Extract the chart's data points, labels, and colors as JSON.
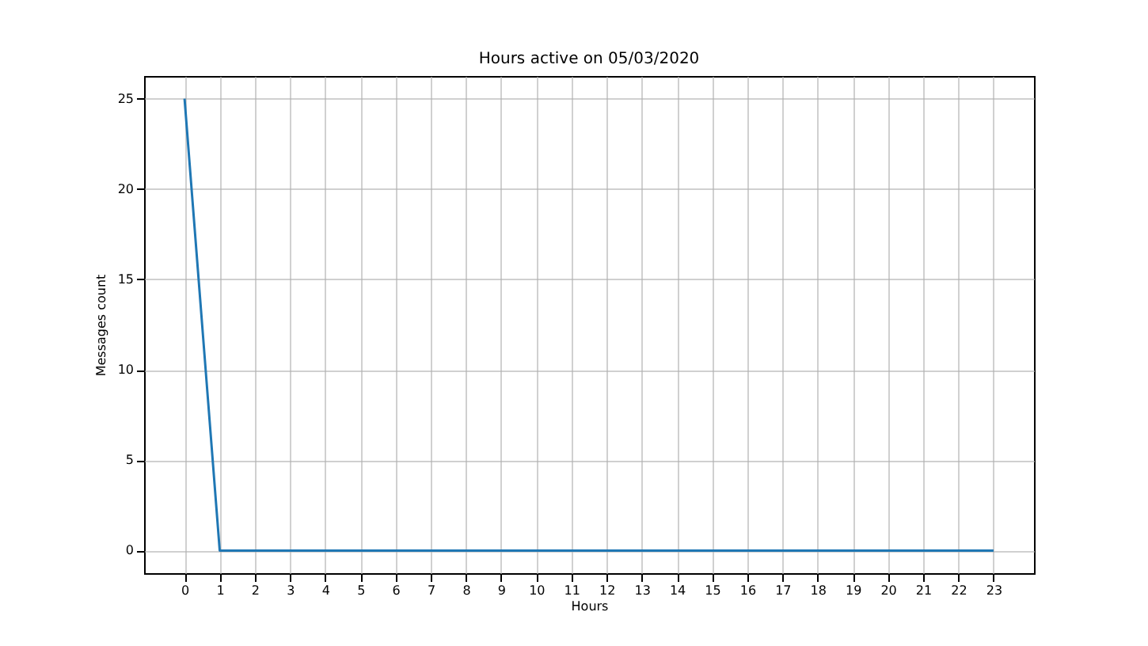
{
  "chart_data": {
    "type": "line",
    "title": "Hours active on 05/03/2020",
    "xlabel": "Hours",
    "ylabel": "Messages count",
    "x": [
      0,
      1,
      2,
      3,
      4,
      5,
      6,
      7,
      8,
      9,
      10,
      11,
      12,
      13,
      14,
      15,
      16,
      17,
      18,
      19,
      20,
      21,
      22,
      23
    ],
    "series": [
      {
        "color": "#1f77b4",
        "values": [
          25,
          0,
          0,
          0,
          0,
          0,
          0,
          0,
          0,
          0,
          0,
          0,
          0,
          0,
          0,
          0,
          0,
          0,
          0,
          0,
          0,
          0,
          0,
          0
        ]
      }
    ],
    "xlim": [
      -1.15,
      24.15
    ],
    "xticks": [
      0,
      1,
      2,
      3,
      4,
      5,
      6,
      7,
      8,
      9,
      10,
      11,
      12,
      13,
      14,
      15,
      16,
      17,
      18,
      19,
      20,
      21,
      22,
      23
    ],
    "ylim": [
      -1.25,
      26.25
    ],
    "yticks": [
      0,
      5,
      10,
      15,
      20,
      25
    ],
    "grid": true,
    "marker": "none",
    "line_style": "solid"
  }
}
